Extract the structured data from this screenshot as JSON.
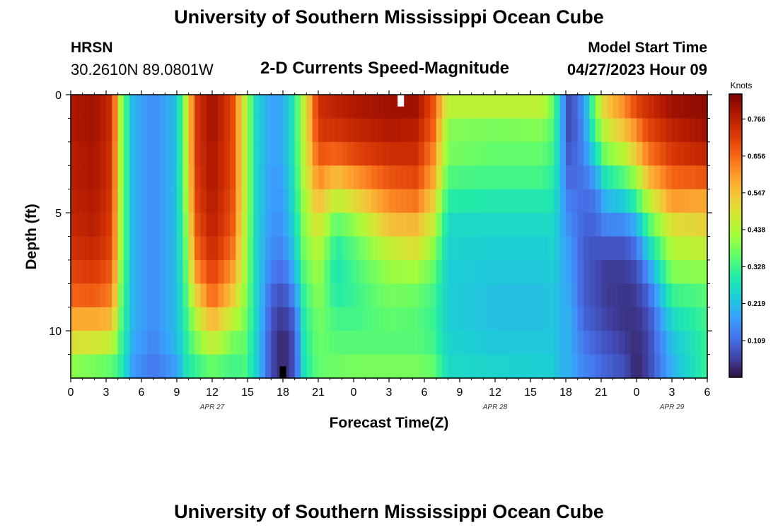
{
  "page": {
    "title_top": "University of Southern Mississippi Ocean Cube",
    "title_bottom": "University of Southern Mississippi Ocean Cube",
    "station_code": "HRSN",
    "station_coords": "30.2610N  89.0801W",
    "model_label": "Model Start Time",
    "model_time": "04/27/2023 Hour 09"
  },
  "chart_data": {
    "type": "heatmap",
    "title": "2-D Currents Speed-Magnitude",
    "xlabel": "Forecast Time(Z)",
    "ylabel": "Depth (ft)",
    "x_hours_from_apr27_00z": [
      0,
      54
    ],
    "x_tick_hours": [
      0,
      3,
      6,
      9,
      12,
      15,
      18,
      21,
      24,
      27,
      30,
      33,
      36,
      39,
      42,
      45,
      48,
      51,
      54
    ],
    "x_tick_labels": [
      "0",
      "3",
      "6",
      "9",
      "12",
      "15",
      "18",
      "21",
      "0",
      "3",
      "6",
      "9",
      "12",
      "15",
      "18",
      "21",
      "0",
      "3",
      "6"
    ],
    "date_labels": [
      {
        "hour": 12,
        "text": "APR 27"
      },
      {
        "hour": 36,
        "text": "APR 28"
      },
      {
        "hour": 51,
        "text": "APR 29"
      }
    ],
    "ylim": [
      0,
      12
    ],
    "y_tick_values": [
      0,
      5,
      10
    ],
    "y_tick_labels": [
      "0",
      "5",
      "10"
    ],
    "colorbar": {
      "label": "Knots",
      "min": 0.0,
      "max": 0.84,
      "ticks": [
        0.109,
        0.219,
        0.328,
        0.438,
        0.547,
        0.656,
        0.766
      ],
      "tick_labels": [
        "0.109",
        "0.219",
        "0.328",
        "0.438",
        "0.547",
        "0.656",
        "0.766"
      ],
      "colors": [
        "#30123b",
        "#4145ab",
        "#4675ed",
        "#39a2fc",
        "#1bcfd4",
        "#24eca6",
        "#61fc6c",
        "#a4fc3b",
        "#d1e834",
        "#f3c63a",
        "#fe9b2d",
        "#f36315",
        "#d93806",
        "#b11901",
        "#7a0403"
      ]
    },
    "depth_rows_ft": [
      0.5,
      1.5,
      2.5,
      3.5,
      4.5,
      5.5,
      6.5,
      7.5,
      8.5,
      9.5,
      10.5,
      11.5
    ],
    "profiles": [
      {
        "hour": 0,
        "values": [
          0.78,
          0.78,
          0.77,
          0.77,
          0.76,
          0.75,
          0.73,
          0.7,
          0.66,
          0.58,
          0.5,
          0.4
        ]
      },
      {
        "hour": 2,
        "values": [
          0.8,
          0.8,
          0.79,
          0.79,
          0.78,
          0.77,
          0.75,
          0.72,
          0.67,
          0.58,
          0.48,
          0.38
        ]
      },
      {
        "hour": 3.5,
        "values": [
          0.74,
          0.74,
          0.73,
          0.73,
          0.72,
          0.71,
          0.7,
          0.67,
          0.63,
          0.56,
          0.46,
          0.36
        ]
      },
      {
        "hour": 4.3,
        "values": [
          0.4,
          0.4,
          0.4,
          0.4,
          0.4,
          0.4,
          0.4,
          0.38,
          0.36,
          0.34,
          0.32,
          0.3
        ]
      },
      {
        "hour": 5.3,
        "values": [
          0.2,
          0.2,
          0.2,
          0.2,
          0.2,
          0.2,
          0.2,
          0.2,
          0.2,
          0.2,
          0.19,
          0.17
        ]
      },
      {
        "hour": 7,
        "values": [
          0.15,
          0.15,
          0.15,
          0.15,
          0.15,
          0.15,
          0.15,
          0.15,
          0.15,
          0.15,
          0.14,
          0.12
        ]
      },
      {
        "hour": 9,
        "values": [
          0.22,
          0.22,
          0.22,
          0.22,
          0.22,
          0.22,
          0.22,
          0.22,
          0.22,
          0.22,
          0.21,
          0.18
        ]
      },
      {
        "hour": 9.8,
        "values": [
          0.45,
          0.45,
          0.44,
          0.43,
          0.42,
          0.4,
          0.38,
          0.36,
          0.34,
          0.32,
          0.3,
          0.28
        ]
      },
      {
        "hour": 10.6,
        "values": [
          0.72,
          0.72,
          0.72,
          0.71,
          0.7,
          0.68,
          0.65,
          0.6,
          0.52,
          0.44,
          0.38,
          0.32
        ]
      },
      {
        "hour": 12,
        "values": [
          0.8,
          0.8,
          0.79,
          0.79,
          0.78,
          0.77,
          0.75,
          0.71,
          0.66,
          0.57,
          0.47,
          0.37
        ]
      },
      {
        "hour": 13.7,
        "values": [
          0.7,
          0.7,
          0.7,
          0.7,
          0.69,
          0.68,
          0.65,
          0.6,
          0.54,
          0.46,
          0.38,
          0.33
        ]
      },
      {
        "hour": 14.8,
        "values": [
          0.45,
          0.45,
          0.45,
          0.45,
          0.45,
          0.44,
          0.43,
          0.42,
          0.4,
          0.38,
          0.36,
          0.34
        ]
      },
      {
        "hour": 15.8,
        "values": [
          0.25,
          0.25,
          0.25,
          0.25,
          0.25,
          0.25,
          0.25,
          0.25,
          0.25,
          0.25,
          0.24,
          0.24
        ]
      },
      {
        "hour": 17,
        "values": [
          0.18,
          0.18,
          0.18,
          0.17,
          0.17,
          0.16,
          0.15,
          0.13,
          0.1,
          0.08,
          0.07,
          0.07
        ]
      },
      {
        "hour": 18,
        "values": [
          0.19,
          0.19,
          0.19,
          0.18,
          0.17,
          0.16,
          0.14,
          0.11,
          0.07,
          0.04,
          0.02,
          0.02
        ]
      },
      {
        "hour": 19,
        "values": [
          0.3,
          0.3,
          0.3,
          0.29,
          0.28,
          0.26,
          0.24,
          0.2,
          0.15,
          0.1,
          0.08,
          0.08
        ]
      },
      {
        "hour": 19.8,
        "values": [
          0.46,
          0.46,
          0.45,
          0.44,
          0.42,
          0.4,
          0.38,
          0.35,
          0.32,
          0.3,
          0.29,
          0.28
        ]
      },
      {
        "hour": 21,
        "values": [
          0.74,
          0.72,
          0.68,
          0.62,
          0.56,
          0.5,
          0.45,
          0.42,
          0.4,
          0.38,
          0.37,
          0.36
        ]
      },
      {
        "hour": 22.5,
        "values": [
          0.76,
          0.73,
          0.66,
          0.55,
          0.45,
          0.35,
          0.3,
          0.28,
          0.3,
          0.33,
          0.35,
          0.37
        ]
      },
      {
        "hour": 24,
        "values": [
          0.78,
          0.75,
          0.7,
          0.6,
          0.5,
          0.4,
          0.35,
          0.33,
          0.32,
          0.33,
          0.35,
          0.38
        ]
      },
      {
        "hour": 27,
        "values": [
          0.8,
          0.78,
          0.74,
          0.68,
          0.62,
          0.55,
          0.46,
          0.41,
          0.38,
          0.36,
          0.35,
          0.38
        ]
      },
      {
        "hour": 29.3,
        "values": [
          0.8,
          0.77,
          0.74,
          0.7,
          0.64,
          0.56,
          0.5,
          0.42,
          0.37,
          0.35,
          0.35,
          0.38
        ]
      },
      {
        "hour": 30.8,
        "values": [
          0.68,
          0.66,
          0.62,
          0.58,
          0.52,
          0.46,
          0.4,
          0.36,
          0.33,
          0.32,
          0.33,
          0.36
        ]
      },
      {
        "hour": 32,
        "values": [
          0.45,
          0.39,
          0.38,
          0.34,
          0.3,
          0.26,
          0.25,
          0.24,
          0.24,
          0.24,
          0.25,
          0.26
        ]
      },
      {
        "hour": 36,
        "values": [
          0.45,
          0.38,
          0.36,
          0.33,
          0.29,
          0.26,
          0.24,
          0.23,
          0.22,
          0.22,
          0.23,
          0.25
        ]
      },
      {
        "hour": 40,
        "values": [
          0.45,
          0.39,
          0.36,
          0.33,
          0.29,
          0.26,
          0.24,
          0.23,
          0.22,
          0.22,
          0.23,
          0.24
        ]
      },
      {
        "hour": 41,
        "values": [
          0.36,
          0.34,
          0.32,
          0.3,
          0.28,
          0.26,
          0.25,
          0.24,
          0.23,
          0.23,
          0.23,
          0.24
        ]
      },
      {
        "hour": 41.6,
        "values": [
          0.2,
          0.2,
          0.2,
          0.2,
          0.2,
          0.2,
          0.2,
          0.2,
          0.2,
          0.2,
          0.2,
          0.2
        ]
      },
      {
        "hour": 42.3,
        "values": [
          0.06,
          0.06,
          0.08,
          0.1,
          0.13,
          0.15,
          0.17,
          0.18,
          0.19,
          0.2,
          0.2,
          0.2
        ]
      },
      {
        "hour": 43.5,
        "values": [
          0.16,
          0.15,
          0.14,
          0.12,
          0.11,
          0.1,
          0.09,
          0.09,
          0.09,
          0.1,
          0.12,
          0.14
        ]
      },
      {
        "hour": 44.5,
        "values": [
          0.38,
          0.34,
          0.26,
          0.18,
          0.12,
          0.1,
          0.08,
          0.07,
          0.07,
          0.08,
          0.1,
          0.12
        ]
      },
      {
        "hour": 45.3,
        "values": [
          0.52,
          0.45,
          0.38,
          0.28,
          0.2,
          0.14,
          0.08,
          0.05,
          0.05,
          0.06,
          0.08,
          0.1
        ]
      },
      {
        "hour": 47,
        "values": [
          0.62,
          0.55,
          0.45,
          0.35,
          0.24,
          0.15,
          0.08,
          0.05,
          0.04,
          0.04,
          0.05,
          0.07
        ]
      },
      {
        "hour": 48,
        "values": [
          0.7,
          0.62,
          0.54,
          0.42,
          0.32,
          0.2,
          0.12,
          0.07,
          0.05,
          0.04,
          0.03,
          0.02
        ]
      },
      {
        "hour": 49,
        "values": [
          0.74,
          0.7,
          0.64,
          0.56,
          0.44,
          0.34,
          0.25,
          0.16,
          0.1,
          0.07,
          0.06,
          0.06
        ]
      },
      {
        "hour": 51,
        "values": [
          0.8,
          0.76,
          0.72,
          0.66,
          0.6,
          0.5,
          0.44,
          0.39,
          0.32,
          0.26,
          0.22,
          0.2
        ]
      },
      {
        "hour": 54,
        "values": [
          0.82,
          0.8,
          0.76,
          0.68,
          0.58,
          0.52,
          0.46,
          0.4,
          0.35,
          0.33,
          0.32,
          0.32
        ]
      }
    ],
    "markers": [
      {
        "hour": 28,
        "depth_ft": [
          0,
          0.5
        ],
        "color": "#ffffff"
      },
      {
        "hour": 18,
        "depth_ft": [
          11.5,
          12
        ],
        "color": "#000000"
      }
    ]
  }
}
